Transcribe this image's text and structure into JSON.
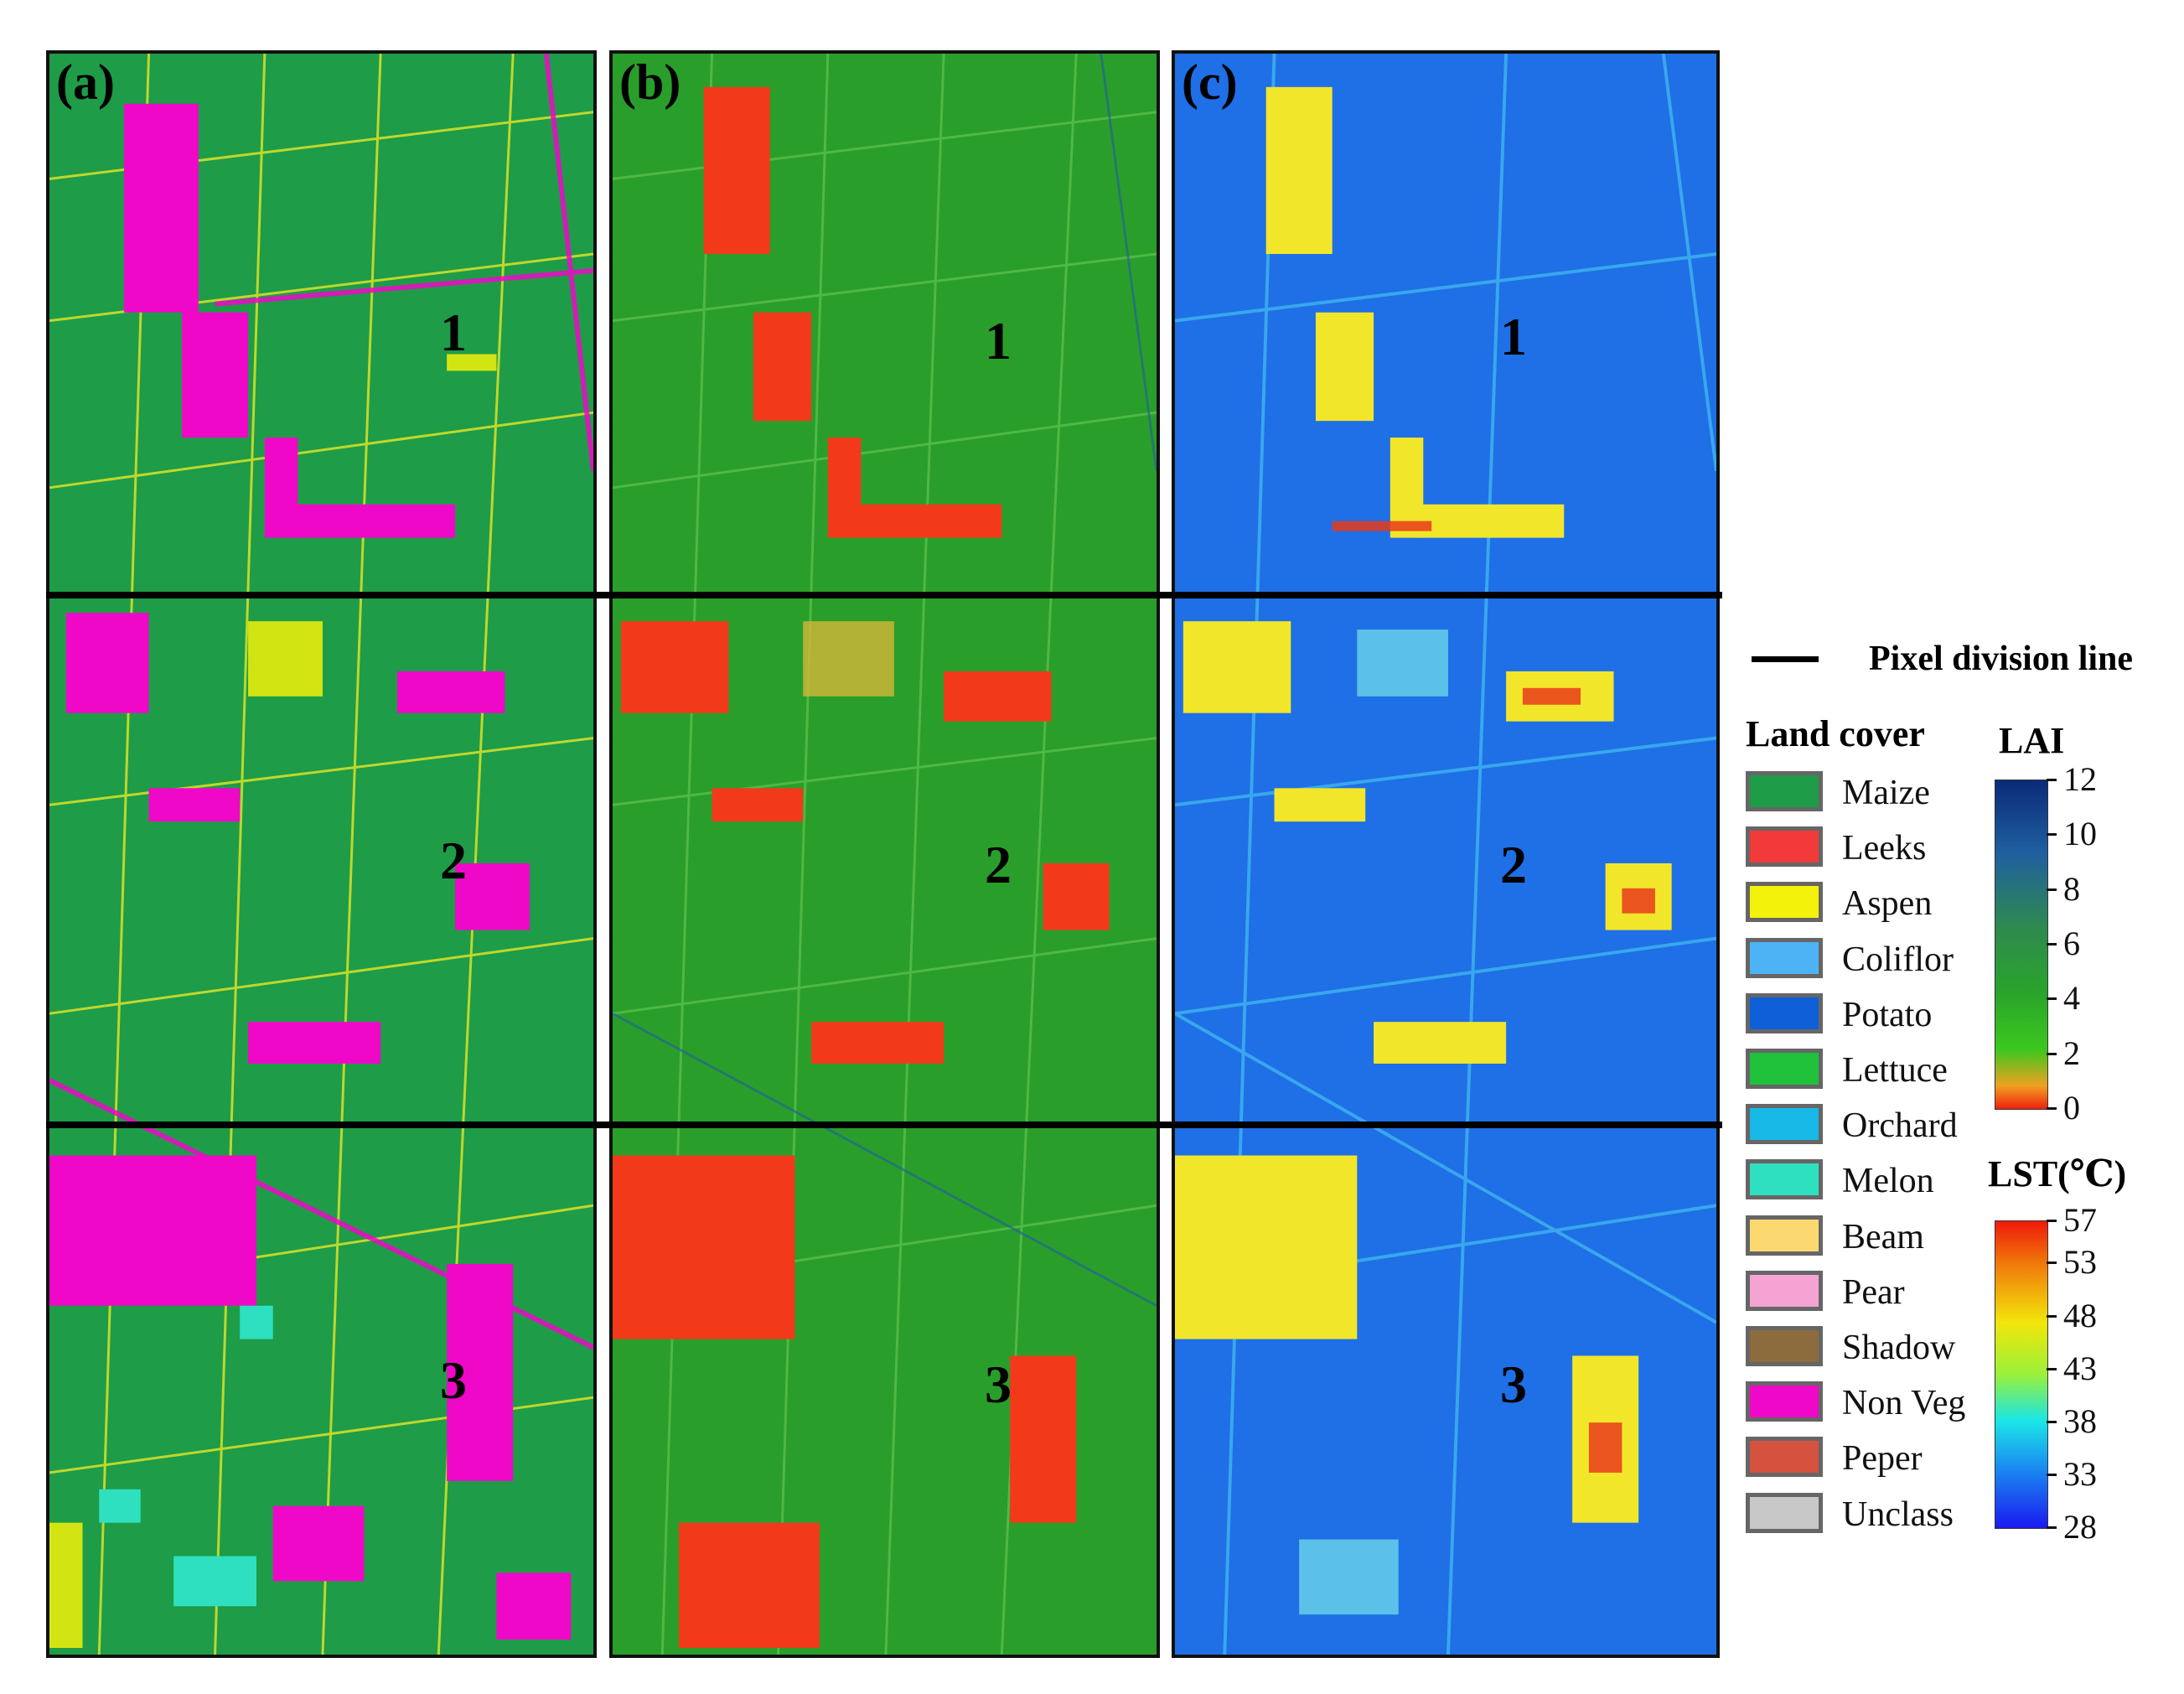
{
  "panels": [
    {
      "label": "(a)",
      "zones": [
        "1",
        "2",
        "3"
      ]
    },
    {
      "label": "(b)",
      "zones": [
        "1",
        "2",
        "3"
      ]
    },
    {
      "label": "(c)",
      "zones": [
        "1",
        "2",
        "3"
      ]
    }
  ],
  "division_legend": {
    "label": "Pixel division line"
  },
  "land_cover": {
    "title": "Land cover",
    "items": [
      {
        "label": "Maize",
        "color": "#1e9c48"
      },
      {
        "label": "Leeks",
        "color": "#f23a3a"
      },
      {
        "label": "Aspen",
        "color": "#f2f20a"
      },
      {
        "label": "Coliflor",
        "color": "#4db3f5"
      },
      {
        "label": "Potato",
        "color": "#0f5fd9"
      },
      {
        "label": "Lettuce",
        "color": "#1fc23a"
      },
      {
        "label": "Orchard",
        "color": "#17b8e6"
      },
      {
        "label": "Melon",
        "color": "#2fe0c0"
      },
      {
        "label": "Beam",
        "color": "#fbd970"
      },
      {
        "label": "Pear",
        "color": "#f5a3d3"
      },
      {
        "label": "Shadow",
        "color": "#8c6c3c"
      },
      {
        "label": "Non Veg",
        "color": "#f008c8"
      },
      {
        "label": "Peper",
        "color": "#d4523e"
      },
      {
        "label": "Unclass",
        "color": "#c8c8c8"
      }
    ]
  },
  "lai": {
    "title": "LAI",
    "ticks": [
      "12",
      "10",
      "8",
      "6",
      "4",
      "2",
      "0"
    ],
    "range": [
      0,
      12
    ]
  },
  "lst": {
    "title": "LST(℃)",
    "ticks": [
      "57",
      "53",
      "48",
      "43",
      "38",
      "33",
      "28"
    ],
    "range": [
      28,
      57
    ]
  }
}
